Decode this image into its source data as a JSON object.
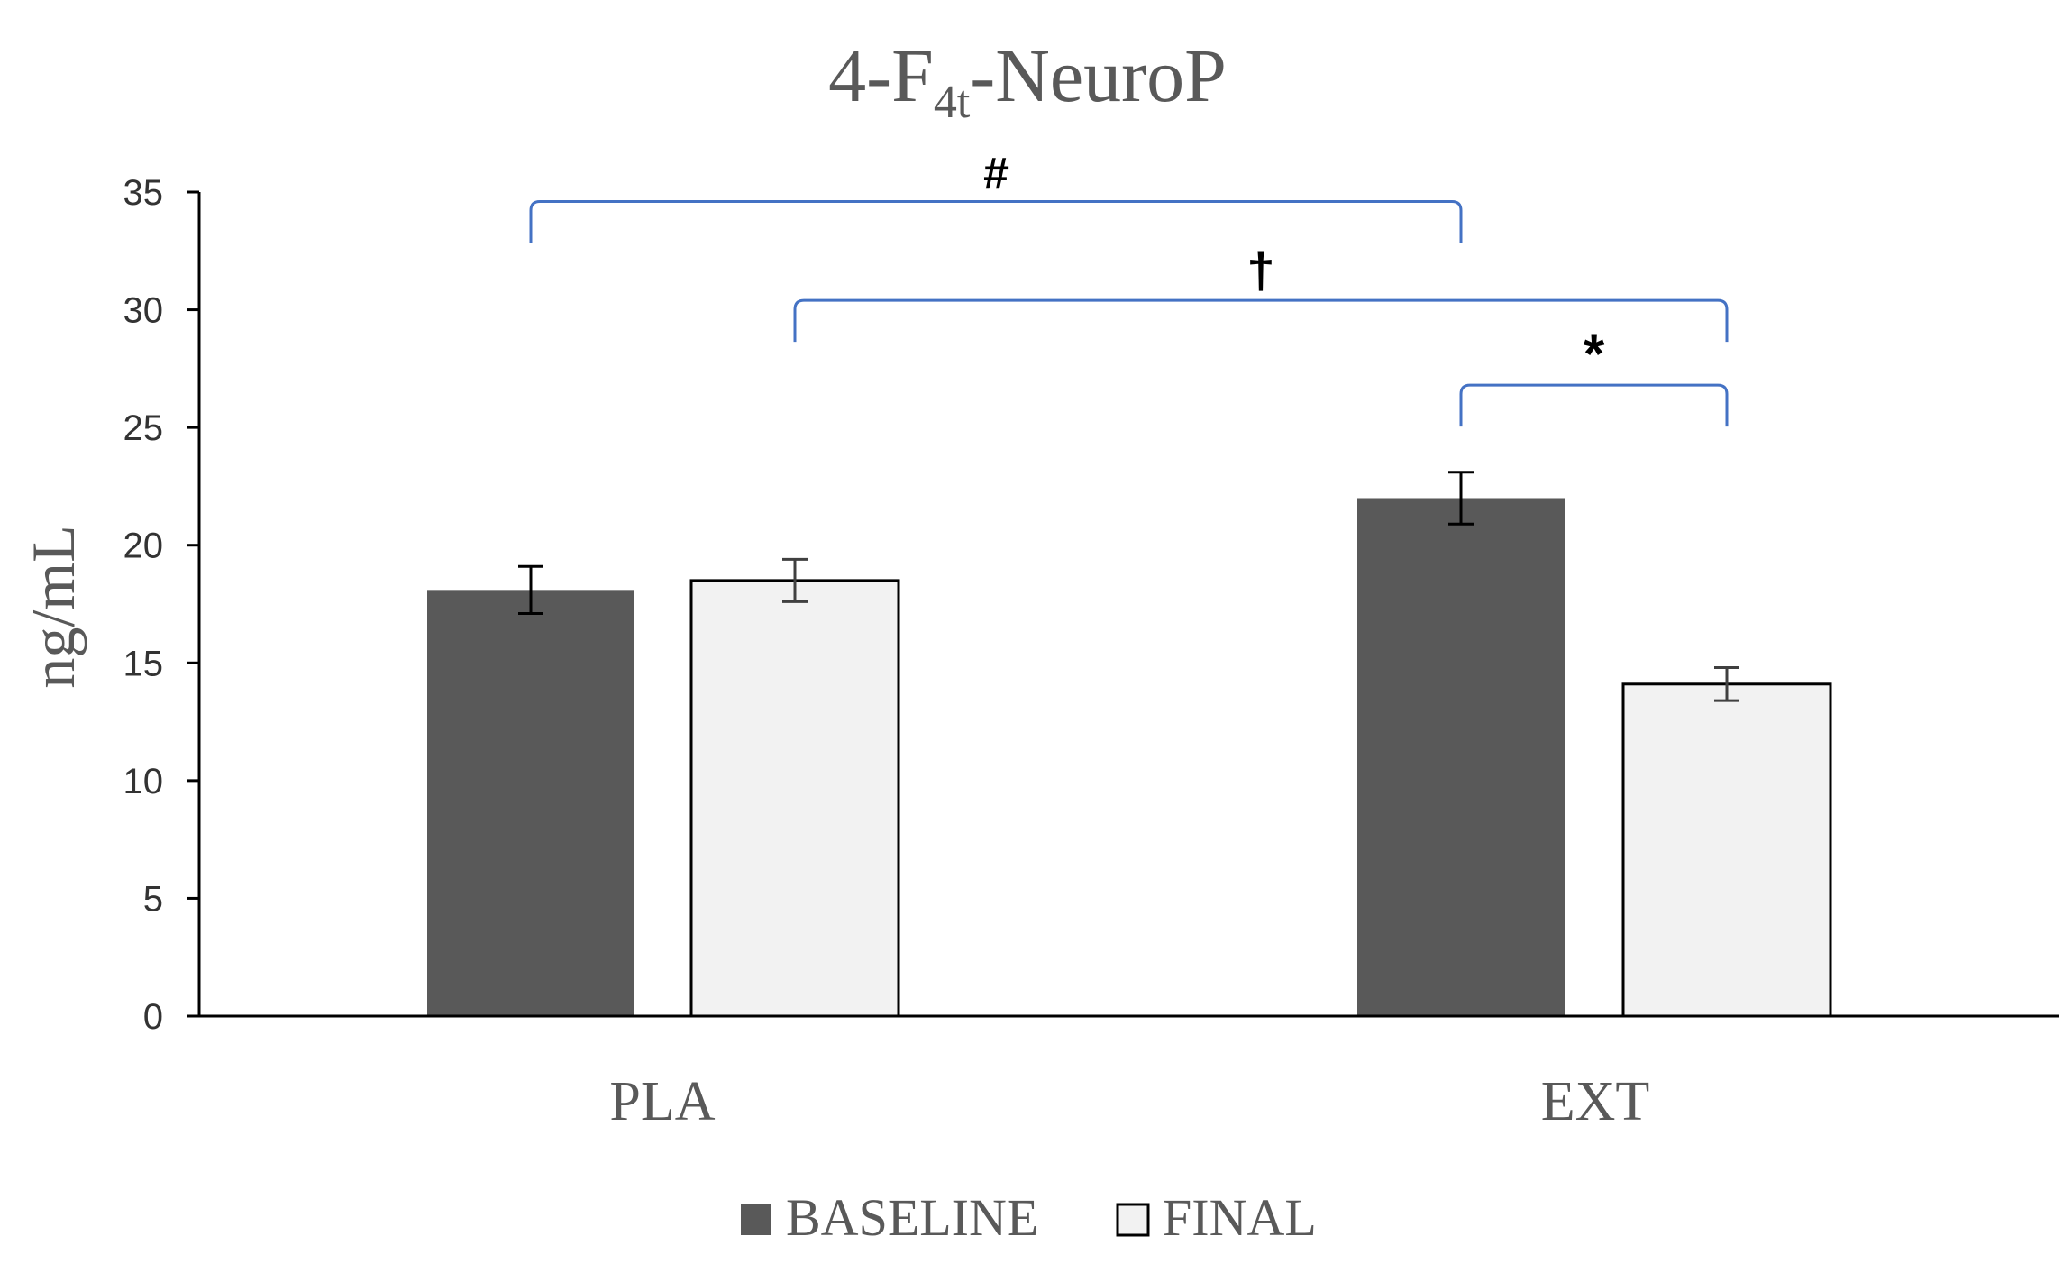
{
  "chart_data": {
    "type": "bar",
    "title_main": "4-F",
    "title_sub": "4t",
    "title_tail": "-NeuroP",
    "ylabel": "ng/mL",
    "xlabel": "",
    "categories": [
      "PLA",
      "EXT"
    ],
    "ylim": [
      0,
      35
    ],
    "yticks": [
      0,
      5,
      10,
      15,
      20,
      25,
      30,
      35
    ],
    "ytick_labels": [
      "0",
      "5",
      "10",
      "15",
      "20",
      "25",
      "30",
      "35"
    ],
    "grid": false,
    "legend_position": "bottom",
    "series": [
      {
        "name": "BASELINE",
        "values": [
          18.1,
          22.0
        ],
        "errors": [
          1.0,
          1.1
        ],
        "color": "#595959"
      },
      {
        "name": "FINAL",
        "values": [
          18.5,
          14.1
        ],
        "errors": [
          0.9,
          0.7
        ],
        "color": "#f2f2f2"
      }
    ],
    "significance": [
      {
        "symbol": "#",
        "from": [
          0,
          0
        ],
        "to": [
          1,
          0
        ],
        "y": 34.6
      },
      {
        "symbol": "†",
        "from": [
          0,
          1
        ],
        "to": [
          1,
          1
        ],
        "y": 30.4
      },
      {
        "symbol": "*",
        "from": [
          1,
          0
        ],
        "to": [
          1,
          1
        ],
        "y": 26.8
      }
    ],
    "bracket_color": "#4472c4"
  }
}
